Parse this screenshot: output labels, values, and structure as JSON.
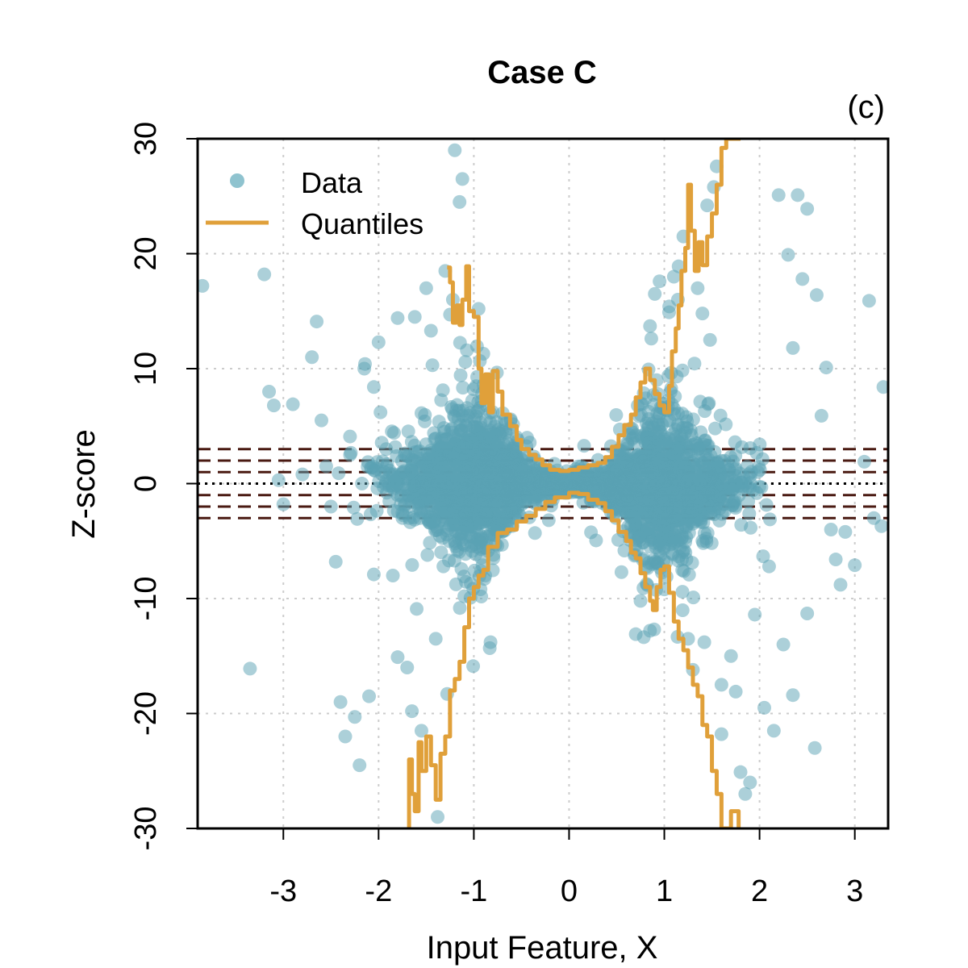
{
  "chart_data": {
    "type": "scatter",
    "title": "Case C",
    "panel_label": "(c)",
    "xlabel": "Input Feature, X",
    "ylabel": "Z-score",
    "xlim": [
      -3.9,
      3.35
    ],
    "ylim": [
      -30,
      30
    ],
    "xticks": [
      -3,
      -2,
      -1,
      0,
      1,
      2,
      3
    ],
    "xtick_labels": [
      "-3",
      "-2",
      "-1",
      "0",
      "1",
      "2",
      "3"
    ],
    "yticks": [
      -30,
      -20,
      -10,
      0,
      10,
      20,
      30
    ],
    "ytick_labels": [
      "-30",
      "-20",
      "-10",
      "0",
      "10",
      "20",
      "30"
    ],
    "grid": true,
    "legend_position": "top-left",
    "legend": [
      {
        "label": "Data",
        "kind": "point",
        "color": "#8fc3cf"
      },
      {
        "label": "Quantiles",
        "kind": "line",
        "color": "#e0a03a"
      }
    ],
    "reference_lines": [
      {
        "y": 3,
        "style": "dashed",
        "color": "#4a1a12"
      },
      {
        "y": 2,
        "style": "dashed",
        "color": "#4a1a12"
      },
      {
        "y": 1,
        "style": "dashed",
        "color": "#4a1a12"
      },
      {
        "y": 0,
        "style": "dotted",
        "color": "#000000"
      },
      {
        "y": -1,
        "style": "dashed",
        "color": "#4a1a12"
      },
      {
        "y": -2,
        "style": "dashed",
        "color": "#4a1a12"
      },
      {
        "y": -3,
        "style": "dashed",
        "color": "#4a1a12"
      }
    ],
    "scatter_color": "#5aa2b4",
    "points": [
      [
        -3.85,
        17.2
      ],
      [
        -3.2,
        18.2
      ],
      [
        -3.15,
        8.0
      ],
      [
        -3.1,
        6.8
      ],
      [
        -3.35,
        -16.1
      ],
      [
        -3.05,
        0.3
      ],
      [
        -3.0,
        -1.8
      ],
      [
        -2.8,
        0.8
      ],
      [
        -2.7,
        11.0
      ],
      [
        -2.65,
        14.1
      ],
      [
        -2.6,
        5.5
      ],
      [
        -2.55,
        1.5
      ],
      [
        -2.5,
        -2.0
      ],
      [
        -2.45,
        -6.8
      ],
      [
        -2.4,
        -19.0
      ],
      [
        -2.35,
        -22.0
      ],
      [
        -2.3,
        2.5
      ],
      [
        -2.25,
        -20.3
      ],
      [
        -2.2,
        -24.5
      ],
      [
        -2.15,
        10.0
      ],
      [
        -2.1,
        -18.5
      ],
      [
        -2.05,
        8.4
      ],
      [
        -2.0,
        12.3
      ],
      [
        -1.98,
        6.2
      ],
      [
        -1.92,
        3.0
      ],
      [
        -1.85,
        -8.0
      ],
      [
        -1.8,
        -15.1
      ],
      [
        -1.75,
        1.0
      ],
      [
        -1.7,
        -16.0
      ],
      [
        -1.62,
        14.5
      ],
      [
        -1.6,
        -10.9
      ],
      [
        -1.55,
        -21.5
      ],
      [
        -1.5,
        17.0
      ],
      [
        -1.45,
        13.3
      ],
      [
        -1.4,
        -13.5
      ],
      [
        -1.38,
        -29.0
      ],
      [
        -1.3,
        18.5
      ],
      [
        -1.28,
        -18.3
      ],
      [
        -1.22,
        16.0
      ],
      [
        -1.2,
        29.0
      ],
      [
        -1.15,
        24.5
      ],
      [
        -1.12,
        26.5
      ],
      [
        -1.1,
        -9.8
      ],
      [
        -0.95,
        15.2
      ],
      [
        -0.9,
        11.3
      ],
      [
        -0.88,
        -8.0
      ],
      [
        -0.8,
        6.2
      ],
      [
        -2.42,
        0.9
      ],
      [
        -2.9,
        6.9
      ],
      [
        2.2,
        25.1
      ],
      [
        2.3,
        19.9
      ],
      [
        2.4,
        25.1
      ],
      [
        2.45,
        17.8
      ],
      [
        2.5,
        23.9
      ],
      [
        2.6,
        16.4
      ],
      [
        2.65,
        5.9
      ],
      [
        2.7,
        10.1
      ],
      [
        2.75,
        -4.0
      ],
      [
        2.8,
        -6.6
      ],
      [
        2.9,
        -4.2
      ],
      [
        3.0,
        -7.1
      ],
      [
        3.3,
        8.4
      ],
      [
        3.28,
        -3.7
      ],
      [
        3.2,
        -3.0
      ],
      [
        3.1,
        1.9
      ],
      [
        2.58,
        -23.0
      ],
      [
        2.35,
        -18.4
      ],
      [
        2.25,
        -14.0
      ],
      [
        2.15,
        -21.5
      ],
      [
        2.05,
        -19.5
      ],
      [
        1.95,
        -11.4
      ],
      [
        1.9,
        -26.0
      ],
      [
        1.85,
        -27.0
      ],
      [
        1.8,
        -25.1
      ],
      [
        1.75,
        -18.1
      ],
      [
        1.7,
        -15.0
      ],
      [
        1.6,
        -21.8
      ],
      [
        1.55,
        27.6
      ],
      [
        1.52,
        25.8
      ],
      [
        1.48,
        12.5
      ],
      [
        1.45,
        24.2
      ],
      [
        1.4,
        14.8
      ],
      [
        1.35,
        17.0
      ],
      [
        1.3,
        -16.2
      ],
      [
        1.25,
        -13.5
      ],
      [
        1.2,
        21.5
      ],
      [
        1.15,
        18.9
      ],
      [
        1.1,
        18.0
      ],
      [
        1.05,
        14.9
      ],
      [
        0.95,
        17.6
      ],
      [
        0.9,
        16.5
      ],
      [
        0.85,
        13.7
      ],
      [
        0.92,
        9.0
      ],
      [
        1.0,
        -9.2
      ],
      [
        0.85,
        -12.8
      ],
      [
        0.75,
        -10.2
      ],
      [
        0.7,
        -13.1
      ],
      [
        1.42,
        -13.8
      ],
      [
        1.6,
        -17.5
      ],
      [
        0.55,
        -7.7
      ],
      [
        -2.05,
        -7.9
      ],
      [
        -1.8,
        14.4
      ],
      [
        -1.25,
        14.7
      ],
      [
        -1.65,
        -19.8
      ],
      [
        -2.3,
        4.1
      ],
      [
        2.35,
        11.8
      ],
      [
        2.5,
        -11.3
      ],
      [
        2.1,
        -7.2
      ],
      [
        3.15,
        15.9
      ],
      [
        2.85,
        -8.8
      ]
    ],
    "cloud": {
      "description": "dense cloud of points around Z=0, widest near X=-1 and X=+1, narrow near X=0",
      "count": 2600
    },
    "quantile_upper": [
      [
        -1.28,
        18.8
      ],
      [
        -1.25,
        17.5
      ],
      [
        -1.22,
        14.0
      ],
      [
        -1.18,
        15.5
      ],
      [
        -1.15,
        13.8
      ],
      [
        -1.12,
        16.0
      ],
      [
        -1.08,
        18.9
      ],
      [
        -1.05,
        15.0
      ],
      [
        -1.0,
        14.5
      ],
      [
        -0.95,
        10.0
      ],
      [
        -0.92,
        7.0
      ],
      [
        -0.88,
        9.5
      ],
      [
        -0.84,
        6.2
      ],
      [
        -0.8,
        9.8
      ],
      [
        -0.75,
        8.0
      ],
      [
        -0.7,
        6.0
      ],
      [
        -0.62,
        5.0
      ],
      [
        -0.55,
        3.8
      ],
      [
        -0.5,
        3.0
      ],
      [
        -0.42,
        2.5
      ],
      [
        -0.35,
        2.1
      ],
      [
        -0.28,
        1.6
      ],
      [
        -0.2,
        1.2
      ],
      [
        -0.1,
        1.1
      ],
      [
        0.0,
        1.2
      ],
      [
        0.1,
        1.4
      ],
      [
        0.2,
        1.6
      ],
      [
        0.3,
        1.8
      ],
      [
        0.38,
        2.3
      ],
      [
        0.45,
        3.2
      ],
      [
        0.52,
        4.2
      ],
      [
        0.58,
        5.1
      ],
      [
        0.65,
        6.0
      ],
      [
        0.7,
        7.5
      ],
      [
        0.75,
        8.8
      ],
      [
        0.8,
        10.0
      ],
      [
        0.85,
        9.0
      ],
      [
        0.9,
        7.8
      ],
      [
        0.95,
        6.8
      ],
      [
        1.0,
        6.2
      ],
      [
        1.05,
        8.5
      ],
      [
        1.08,
        11.5
      ],
      [
        1.12,
        13.5
      ],
      [
        1.15,
        15.5
      ],
      [
        1.18,
        18.5
      ],
      [
        1.22,
        20.5
      ],
      [
        1.25,
        26.0
      ],
      [
        1.28,
        22.0
      ],
      [
        1.32,
        18.5
      ],
      [
        1.36,
        21.0
      ],
      [
        1.4,
        19.0
      ],
      [
        1.45,
        21.5
      ],
      [
        1.5,
        23.5
      ],
      [
        1.55,
        26.0
      ],
      [
        1.6,
        29.2
      ],
      [
        1.65,
        30.0
      ],
      [
        1.8,
        30.0
      ]
    ],
    "quantile_lower": [
      [
        -1.7,
        -30.0
      ],
      [
        -1.68,
        -24.0
      ],
      [
        -1.65,
        -27.0
      ],
      [
        -1.62,
        -28.5
      ],
      [
        -1.58,
        -22.5
      ],
      [
        -1.55,
        -25.0
      ],
      [
        -1.5,
        -22.0
      ],
      [
        -1.45,
        -24.5
      ],
      [
        -1.4,
        -27.5
      ],
      [
        -1.35,
        -23.5
      ],
      [
        -1.3,
        -22.0
      ],
      [
        -1.25,
        -18.0
      ],
      [
        -1.2,
        -17.0
      ],
      [
        -1.15,
        -15.5
      ],
      [
        -1.1,
        -12.5
      ],
      [
        -1.05,
        -10.0
      ],
      [
        -1.0,
        -9.0
      ],
      [
        -0.95,
        -8.0
      ],
      [
        -0.9,
        -7.5
      ],
      [
        -0.85,
        -5.5
      ],
      [
        -0.75,
        -4.3
      ],
      [
        -0.65,
        -4.0
      ],
      [
        -0.55,
        -3.3
      ],
      [
        -0.45,
        -2.8
      ],
      [
        -0.35,
        -2.2
      ],
      [
        -0.25,
        -1.6
      ],
      [
        -0.15,
        -1.2
      ],
      [
        0.0,
        -0.8
      ],
      [
        0.1,
        -0.9
      ],
      [
        0.2,
        -1.4
      ],
      [
        0.3,
        -1.7
      ],
      [
        0.38,
        -2.4
      ],
      [
        0.45,
        -3.2
      ],
      [
        0.52,
        -4.2
      ],
      [
        0.6,
        -5.0
      ],
      [
        0.65,
        -6.0
      ],
      [
        0.7,
        -6.5
      ],
      [
        0.75,
        -7.8
      ],
      [
        0.8,
        -9.0
      ],
      [
        0.85,
        -10.2
      ],
      [
        0.88,
        -11.0
      ],
      [
        0.92,
        -9.0
      ],
      [
        0.96,
        -7.5
      ],
      [
        1.0,
        -7.2
      ],
      [
        1.05,
        -9.5
      ],
      [
        1.1,
        -12.0
      ],
      [
        1.15,
        -13.5
      ],
      [
        1.2,
        -14.5
      ],
      [
        1.25,
        -16.0
      ],
      [
        1.3,
        -17.5
      ],
      [
        1.35,
        -18.5
      ],
      [
        1.4,
        -21.0
      ],
      [
        1.45,
        -22.0
      ],
      [
        1.5,
        -25.0
      ],
      [
        1.55,
        -27.0
      ],
      [
        1.6,
        -30.0
      ],
      [
        1.7,
        -28.5
      ],
      [
        1.78,
        -30.0
      ]
    ]
  }
}
